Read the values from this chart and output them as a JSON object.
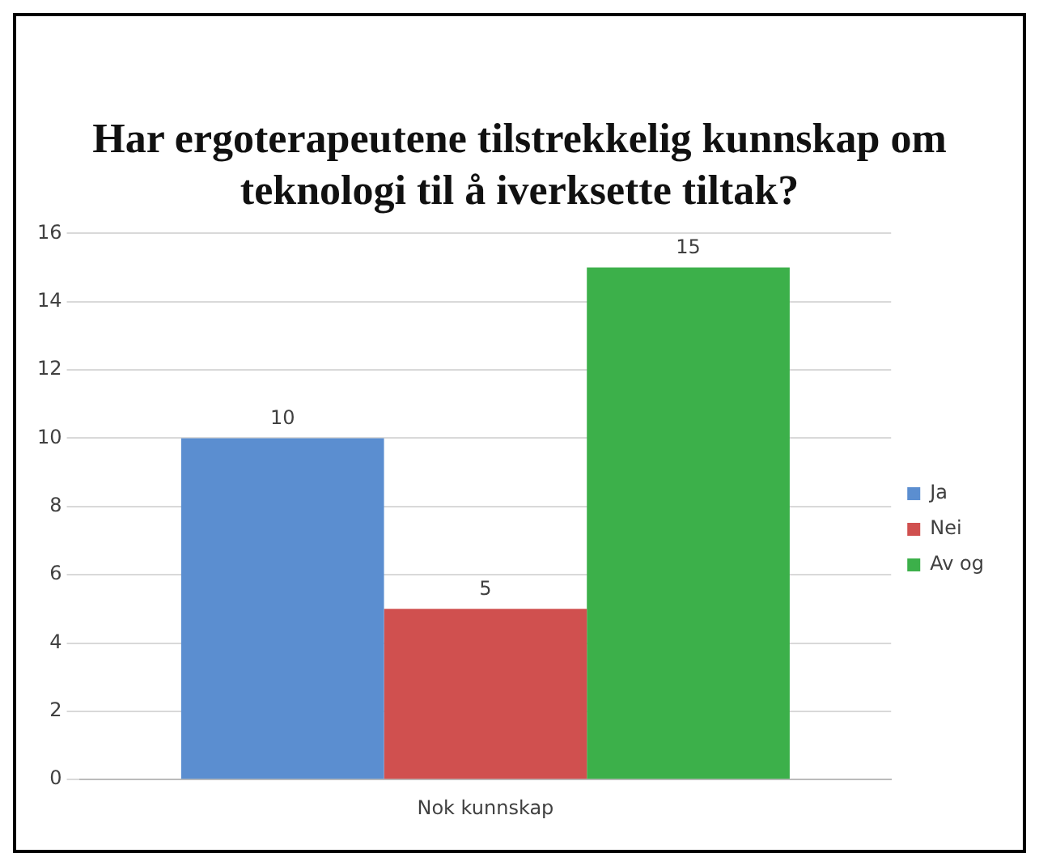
{
  "chart_data": {
    "type": "bar",
    "title": "Har ergoterapeutene tilstrekkelig kunnskap om teknologi til å iverksette tiltak?",
    "categories": [
      "Nok kunnskap"
    ],
    "series": [
      {
        "name": "Ja",
        "color": "#5b8ed0",
        "values": [
          10
        ]
      },
      {
        "name": "Nei",
        "color": "#d0504f",
        "values": [
          5
        ]
      },
      {
        "name": "Av og",
        "color": "#3cb04a",
        "values": [
          15
        ]
      }
    ],
    "ylim": [
      0,
      16
    ],
    "yticks": [
      0,
      2,
      4,
      6,
      8,
      10,
      12,
      14,
      16
    ],
    "grid": "y",
    "legend": "right",
    "data_labels": true
  }
}
